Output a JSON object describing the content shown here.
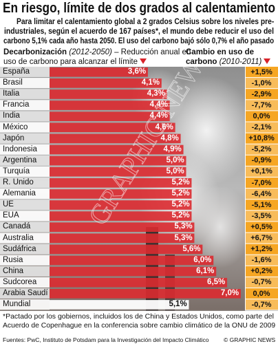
{
  "chart_data": {
    "type": "bar",
    "title": "En riesgo, límite de dos grados al calentamiento",
    "intro": [
      "Para limitar el calentamiento global a 2 grados Celsius sobre los niveles pre-",
      "industriales, según el acuerdo de 167 países*, el mundo debe reducir el uso del",
      "carbono 5,1% cada año hasta 2050. El uso del carbono bajó sólo 0,7% el año pasado"
    ],
    "categories": [
      "España",
      "Brasil",
      "Italia",
      "Francia",
      "India",
      "México",
      "Japón",
      "Indonesia",
      "Argentina",
      "Turquía",
      "R. Unido",
      "Alemania",
      "UE",
      "EUA",
      "Canadá",
      "Australia",
      "Sudáfrica",
      "Rusia",
      "China",
      "Sudcorea",
      "Arabia Saudí",
      "Mundial"
    ],
    "series": [
      {
        "name": "Decarbonización",
        "period": "(2012-2050)",
        "description": "– Reducción anual en uso de carbono para alcanzar el límite",
        "color": "#dc2a30",
        "values": [
          3.6,
          4.1,
          4.3,
          4.4,
          4.4,
          4.6,
          4.8,
          4.9,
          5.0,
          5.0,
          5.2,
          5.2,
          5.2,
          5.2,
          5.3,
          5.3,
          5.6,
          6.0,
          6.1,
          6.5,
          7.0,
          5.1
        ],
        "value_labels": [
          "3,6%",
          "4,1%",
          "4,3%",
          "4,4%",
          "4,4%",
          "4,6%",
          "4,8%",
          "4,9%",
          "5,0%",
          "5,0%",
          "5,2%",
          "5,2%",
          "5,2%",
          "5,2%",
          "5,3%",
          "5,3%",
          "5,6%",
          "6,0%",
          "6,1%",
          "6,5%",
          "7,0%",
          "5,1%"
        ]
      },
      {
        "name": "Cambio en uso de carbono",
        "period": "(2010-2011)",
        "color": "#f6a623",
        "values": [
          1.5,
          -1.0,
          -2.9,
          -7.7,
          0.0,
          -2.1,
          10.8,
          -5.2,
          -0.9,
          0.1,
          -7.0,
          -6.4,
          -5.1,
          -3.5,
          0.5,
          6.7,
          1.2,
          -1.6,
          0.2,
          -0.7,
          0.0,
          -0.7
        ],
        "value_labels": [
          "+1,5%",
          "-1,0%",
          "-2,9%",
          "-7,7%",
          "0,0%",
          "-2,1%",
          "+10,8%",
          "-5,2%",
          "-0,9%",
          "+0,1%",
          "-7,0%",
          "-6,4%",
          "-5,1%",
          "-3,5%",
          "+0,5%",
          "+6,7%",
          "+1,2%",
          "-1,6%",
          "+0,2%",
          "-0,7%",
          "0,0%",
          "-0,7%"
        ]
      }
    ],
    "footnote": [
      "*Pactado por los gobiernos, incluidos los de China y Estados Unidos, como parte del",
      "Acuerdo de Copenhague en la conferencia sobre cambio climático de la ONU de 2009"
    ],
    "source": "Fuentes: PwC, Instituto de Potsdam para la Investigación del Impacto Climático",
    "credit": "© GRAPHIC NEWS",
    "watermark": "GRAPHIC NEWS"
  }
}
